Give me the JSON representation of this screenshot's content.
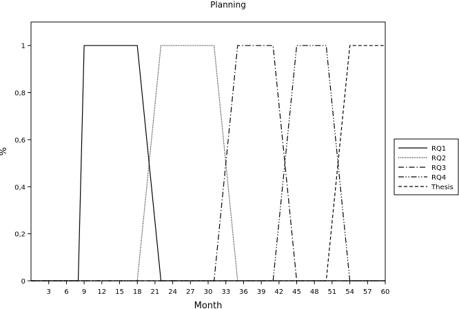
{
  "chart_data": {
    "type": "line",
    "title": "Planning",
    "xlabel": "Month",
    "ylabel": "%",
    "xlim": [
      0,
      60
    ],
    "ylim": [
      0,
      1.1
    ],
    "x_ticks": [
      "3",
      "6",
      "9",
      "12",
      "15",
      "18",
      "21",
      "24",
      "27",
      "30",
      "33",
      "36",
      "39",
      "42",
      "45",
      "48",
      "51",
      "54",
      "57",
      "60"
    ],
    "y_ticks": [
      "0",
      "0,2",
      "0,4",
      "0,6",
      "0,8",
      "1"
    ],
    "grid": false,
    "legend_position": "right",
    "series": [
      {
        "name": "RQ1",
        "style": "solid",
        "x": [
          0,
          8,
          9,
          18,
          22,
          60
        ],
        "y": [
          0,
          0,
          1,
          1,
          0,
          0
        ]
      },
      {
        "name": "RQ2",
        "style": "dotted",
        "x": [
          0,
          18,
          22,
          31,
          35,
          60
        ],
        "y": [
          0,
          0,
          1,
          1,
          0,
          0
        ]
      },
      {
        "name": "RQ3",
        "style": "dash-dot",
        "x": [
          0,
          31,
          35,
          41,
          45,
          60
        ],
        "y": [
          0,
          0,
          1,
          1,
          0,
          0
        ]
      },
      {
        "name": "RQ4",
        "style": "dash-dot-dot",
        "x": [
          0,
          41,
          45,
          50,
          54,
          60
        ],
        "y": [
          0,
          0,
          1,
          1,
          0,
          0
        ]
      },
      {
        "name": "Thesis",
        "style": "dashed",
        "x": [
          0,
          50,
          54,
          60
        ],
        "y": [
          0,
          0,
          1,
          1
        ]
      }
    ]
  }
}
